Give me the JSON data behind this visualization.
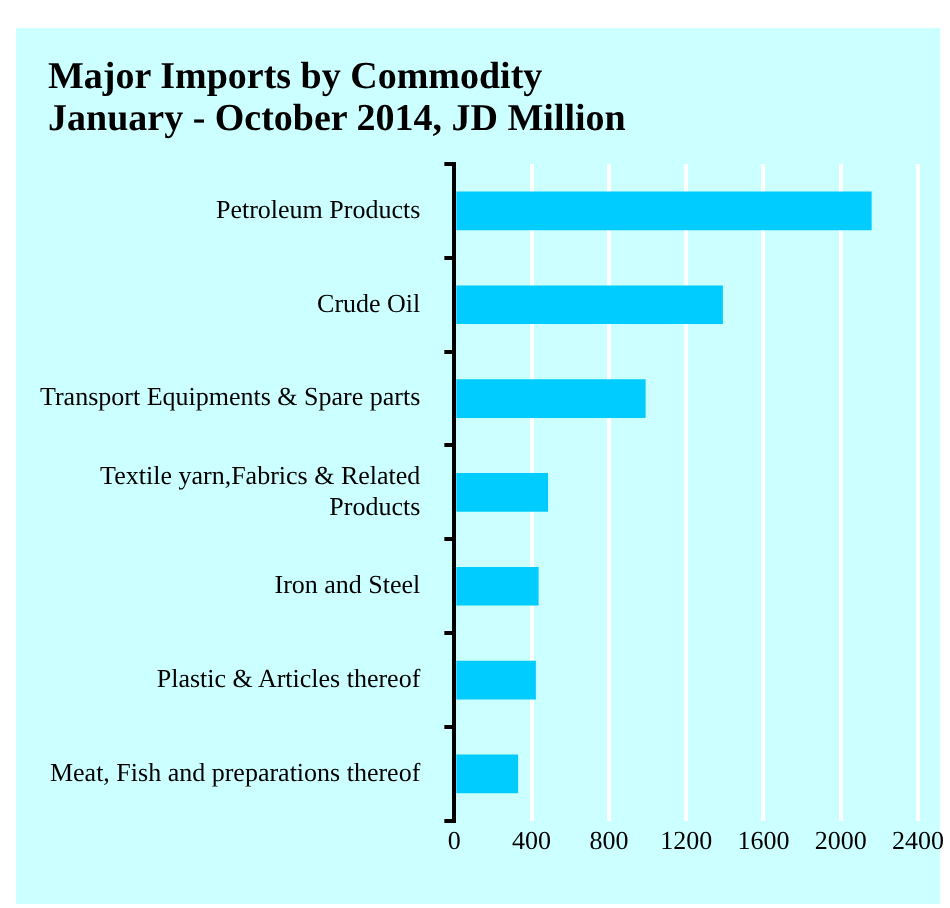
{
  "chart_data": {
    "type": "bar",
    "orientation": "horizontal",
    "title": "Major Imports by Commodity",
    "subtitle": "January - October  2014,  JD Million",
    "categories": [
      "Petroleum Products",
      "Crude Oil",
      "Transport Equipments & Spare parts",
      "Textile yarn,Fabrics & Related Products",
      "Iron and Steel",
      "Plastic & Articles thereof",
      "Meat, Fish and preparations thereof"
    ],
    "values": [
      2160,
      1390,
      990,
      485,
      436,
      422,
      330
    ],
    "color": "#00ccff",
    "xlim": [
      0,
      2400
    ],
    "xticks": [
      0,
      400,
      800,
      1200,
      1600,
      2000,
      2400
    ],
    "grid": "x",
    "legend": false
  }
}
